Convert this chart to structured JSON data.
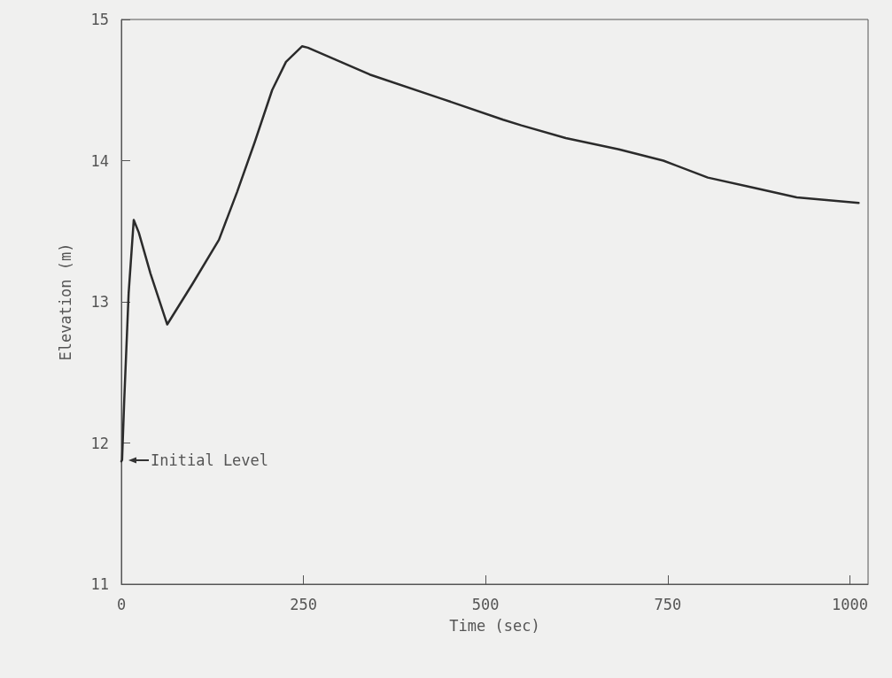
{
  "chart_data": {
    "type": "line",
    "xlabel": "Time (sec)",
    "ylabel": "Elevation (m)",
    "xlim": [
      0,
      1025
    ],
    "xticks": [
      0,
      250,
      500,
      750,
      1000
    ],
    "ylim": [
      11,
      15
    ],
    "yticks": [
      11,
      12,
      13,
      14,
      15
    ],
    "grid": false,
    "marker": "none",
    "line_style": "solid",
    "series": [
      {
        "color": "#2b2b2b",
        "x": [
          0,
          1,
          4,
          10,
          17,
          24,
          40,
          63,
          98,
          134,
          159,
          183,
          207,
          226,
          248,
          256,
          341,
          439,
          524,
          549,
          610,
          683,
          744,
          805,
          866,
          927,
          1012
        ],
        "values": [
          11.87,
          11.88,
          12.31,
          13.06,
          13.58,
          13.49,
          13.2,
          12.84,
          13.13,
          13.44,
          13.78,
          14.13,
          14.5,
          14.7,
          14.81,
          14.8,
          14.61,
          14.44,
          14.29,
          14.25,
          14.16,
          14.08,
          14.0,
          13.88,
          13.81,
          13.74,
          13.7
        ]
      }
    ],
    "annotations": [
      {
        "text": "Initial Level",
        "x": 0,
        "y": 11.88
      }
    ]
  }
}
